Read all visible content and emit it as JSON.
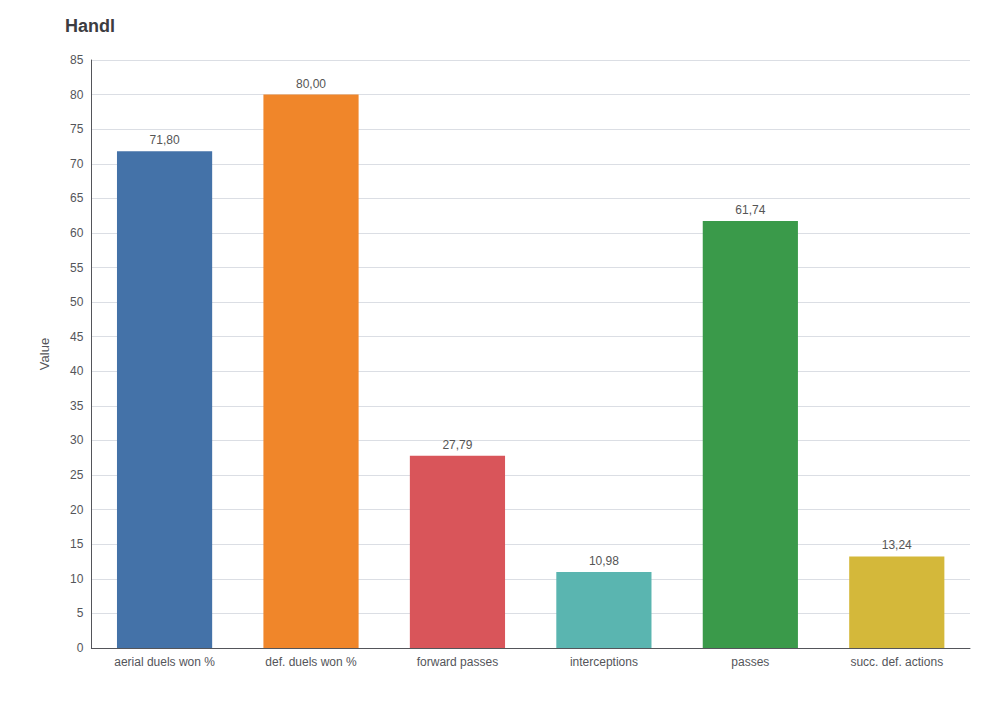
{
  "chart_data": {
    "type": "bar",
    "title": "Handl",
    "ylabel": "Value",
    "categories": [
      "aerial duels won %",
      "def. duels won %",
      "forward passes",
      "interceptions",
      "passes",
      "succ. def. actions"
    ],
    "values": [
      71.8,
      80.0,
      27.79,
      10.98,
      61.74,
      13.24
    ],
    "value_labels": [
      "71,80",
      "80,00",
      "27,79",
      "10,98",
      "61,74",
      "13,24"
    ],
    "colors": [
      "#4472a8",
      "#f0862a",
      "#d9555a",
      "#5ab5b0",
      "#3a9a4a",
      "#d4b83a"
    ],
    "ylim": [
      0,
      85
    ],
    "yticks": [
      0,
      5,
      10,
      15,
      20,
      25,
      30,
      35,
      40,
      45,
      50,
      55,
      60,
      65,
      70,
      75,
      80,
      85
    ],
    "grid": true,
    "data_labels": true
  }
}
